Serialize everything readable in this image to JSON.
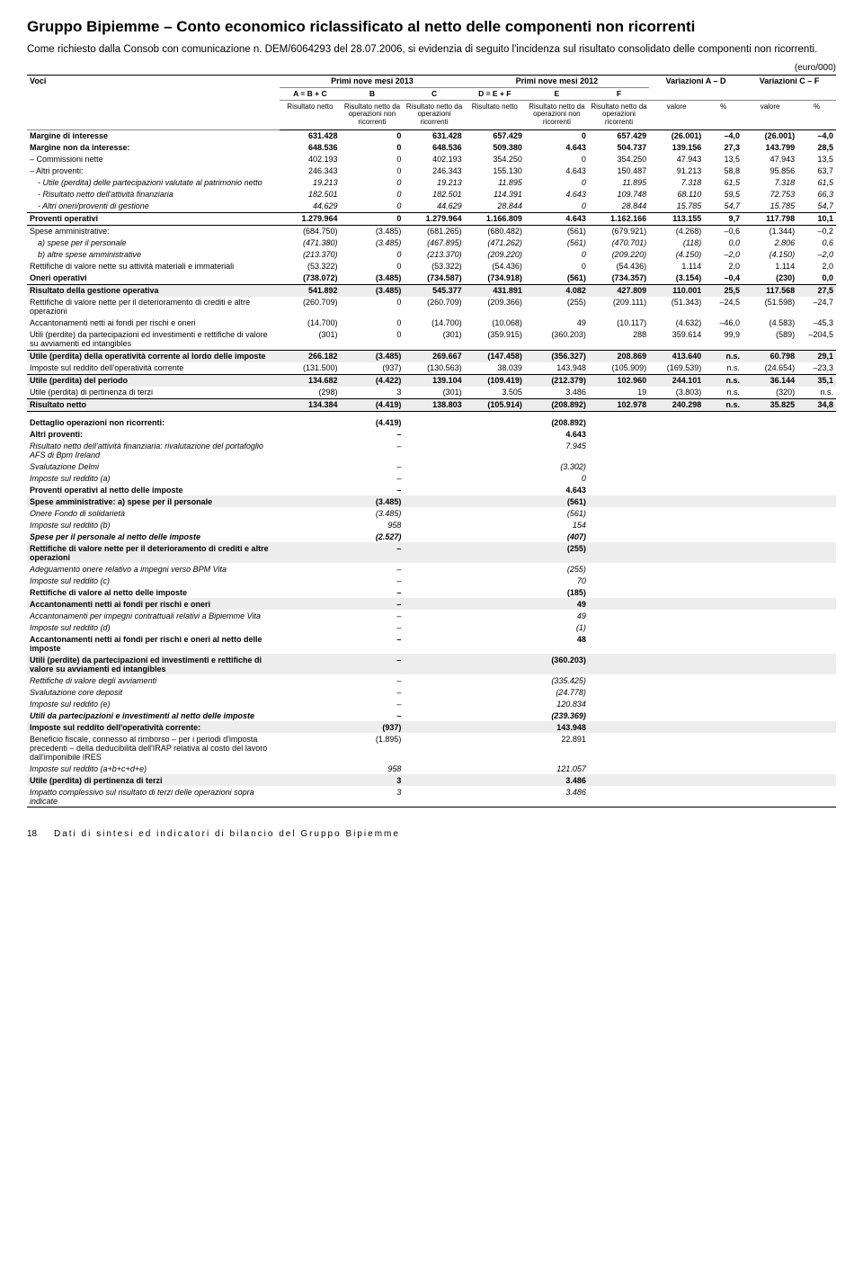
{
  "title": "Gruppo Bipiemme – Conto economico riclassificato al netto delle componenti non ricorrenti",
  "intro": "Come richiesto dalla Consob con comunicazione n. DEM/6064293 del 28.07.2006, si evidenzia di seguito l'incidenza sul risultato consolidato delle componenti non ricorrenti.",
  "unit": "(euro/000)",
  "headers": {
    "voci": "Voci",
    "p2013": "Primi nove mesi 2013",
    "p2012": "Primi nove mesi 2012",
    "varAD": "Variazioni A – D",
    "varCF": "Variazioni C – F",
    "a": "A = B + C",
    "b": "B",
    "c": "C",
    "d": "D = E + F",
    "e": "E",
    "f": "F",
    "rn": "Risultato netto",
    "rnnr": "Risultato netto da operazioni non ricorrenti",
    "rnr": "Risultato netto da operazioni ricorrenti",
    "valore": "valore",
    "pct": "%"
  },
  "rows": [
    {
      "l": "Margine di interesse",
      "b": 1,
      "v": [
        "631.428",
        "0",
        "631.428",
        "657.429",
        "0",
        "657.429",
        "(26.001)",
        "–4,0",
        "(26.001)",
        "–4,0"
      ]
    },
    {
      "l": "Margine non da interesse:",
      "b": 1,
      "v": [
        "648.536",
        "0",
        "648.536",
        "509.380",
        "4.643",
        "504.737",
        "139.156",
        "27,3",
        "143.799",
        "28,5"
      ]
    },
    {
      "l": "– Commissioni nette",
      "v": [
        "402.193",
        "0",
        "402.193",
        "354.250",
        "0",
        "354.250",
        "47.943",
        "13,5",
        "47.943",
        "13,5"
      ]
    },
    {
      "l": "– Altri proventi:",
      "v": [
        "246.343",
        "0",
        "246.343",
        "155.130",
        "4.643",
        "150.487",
        "91.213",
        "58,8",
        "95.856",
        "63,7"
      ]
    },
    {
      "l": "- Utile (perdita) delle partecipazioni valutate al patrimonio netto",
      "i": 1,
      "it": 1,
      "v": [
        "19.213",
        "0",
        "19.213",
        "11.895",
        "0",
        "11.895",
        "7.318",
        "61,5",
        "7.318",
        "61,5"
      ]
    },
    {
      "l": "- Risultato netto dell'attività finanziaria",
      "i": 1,
      "it": 1,
      "v": [
        "182.501",
        "0",
        "182.501",
        "114.391",
        "4.643",
        "109.748",
        "68.110",
        "59,5",
        "72.753",
        "66,3"
      ]
    },
    {
      "l": "- Altri oneri/proventi di gestione",
      "i": 1,
      "it": 1,
      "bl": 1,
      "v": [
        "44.629",
        "0",
        "44.629",
        "28.844",
        "0",
        "28.844",
        "15.785",
        "54,7",
        "15.785",
        "54,7"
      ]
    },
    {
      "l": "Proventi operativi",
      "b": 1,
      "bl": 1,
      "v": [
        "1.279.964",
        "0",
        "1.279.964",
        "1.166.809",
        "4.643",
        "1.162.166",
        "113.155",
        "9,7",
        "117.798",
        "10,1"
      ]
    },
    {
      "l": "Spese amministrative:",
      "v": [
        "(684.750)",
        "(3.485)",
        "(681.265)",
        "(680.482)",
        "(561)",
        "(679.921)",
        "(4.268)",
        "–0,6",
        "(1.344)",
        "–0,2"
      ]
    },
    {
      "l": "a) spese per il personale",
      "i": 1,
      "it": 1,
      "v": [
        "(471.380)",
        "(3.485)",
        "(467.895)",
        "(471.262)",
        "(561)",
        "(470.701)",
        "(118)",
        "0,0",
        "2.806",
        "0,6"
      ]
    },
    {
      "l": "b) altre spese amministrative",
      "i": 1,
      "it": 1,
      "v": [
        "(213.370)",
        "0",
        "(213.370)",
        "(209.220)",
        "0",
        "(209.220)",
        "(4.150)",
        "–2,0",
        "(4.150)",
        "–2,0"
      ]
    },
    {
      "l": "Rettifiche di valore nette su attività materiali e immateriali",
      "v": [
        "(53.322)",
        "0",
        "(53.322)",
        "(54.436)",
        "0",
        "(54.436)",
        "1.114",
        "2,0",
        "1.114",
        "2,0"
      ]
    },
    {
      "l": "Oneri operativi",
      "b": 1,
      "bl": 1,
      "v": [
        "(738.072)",
        "(3.485)",
        "(734.587)",
        "(734.918)",
        "(561)",
        "(734.357)",
        "(3.154)",
        "–0,4",
        "(230)",
        "0,0"
      ]
    },
    {
      "l": "Risultato della gestione operativa",
      "b": 1,
      "s": 1,
      "v": [
        "541.892",
        "(3.485)",
        "545.377",
        "431.891",
        "4.082",
        "427.809",
        "110.001",
        "25,5",
        "117.568",
        "27,5"
      ]
    },
    {
      "l": "Rettifiche di valore nette per il deterioramento di crediti e altre operazioni",
      "v": [
        "(260.709)",
        "0",
        "(260.709)",
        "(209.366)",
        "(255)",
        "(209.111)",
        "(51.343)",
        "–24,5",
        "(51.598)",
        "–24,7"
      ]
    },
    {
      "l": "Accantonamenti netti ai fondi per rischi e oneri",
      "v": [
        "(14.700)",
        "0",
        "(14.700)",
        "(10.068)",
        "49",
        "(10.117)",
        "(4.632)",
        "–46,0",
        "(4.583)",
        "–45,3"
      ]
    },
    {
      "l": "Utili (perdite) da partecipazioni ed investimenti e rettifiche di valore su avviamenti ed intangibles",
      "bl": 1,
      "v": [
        "(301)",
        "0",
        "(301)",
        "(359.915)",
        "(360.203)",
        "288",
        "359.614",
        "99,9",
        "(589)",
        "–204,5"
      ]
    },
    {
      "l": "Utile (perdita) della operatività corrente al lordo delle imposte",
      "b": 1,
      "s": 1,
      "v": [
        "266.182",
        "(3.485)",
        "269.667",
        "(147.458)",
        "(356.327)",
        "208.869",
        "413.640",
        "n.s.",
        "60.798",
        "29,1"
      ]
    },
    {
      "l": "Imposte sul reddito dell'operatività corrente",
      "bl": 1,
      "v": [
        "(131.500)",
        "(937)",
        "(130.563)",
        "38.039",
        "143.948",
        "(105.909)",
        "(169.539)",
        "n.s.",
        "(24.654)",
        "–23,3"
      ]
    },
    {
      "l": "Utile (perdita) del periodo",
      "b": 1,
      "s": 1,
      "v": [
        "134.682",
        "(4.422)",
        "139.104",
        "(109.419)",
        "(212.379)",
        "102.960",
        "244.101",
        "n.s.",
        "36.144",
        "35,1"
      ]
    },
    {
      "l": "Utile (perdita) di pertinenza di terzi",
      "bl": 1,
      "v": [
        "(298)",
        "3",
        "(301)",
        "3.505",
        "3.486",
        "19",
        "(3.803)",
        "n.s.",
        "(320)",
        "n.s."
      ]
    },
    {
      "l": "Risultato netto",
      "b": 1,
      "s": 1,
      "bl": 1,
      "v": [
        "134.384",
        "(4.419)",
        "138.803",
        "(105.914)",
        "(208.892)",
        "102.978",
        "240.298",
        "n.s.",
        "35.825",
        "34,8"
      ]
    }
  ],
  "detail": [
    {
      "l": "Dettaglio operazioni non ricorrenti:",
      "b": 1,
      "v": [
        "(4.419)",
        "(208.892)"
      ]
    },
    {
      "l": "Altri proventi:",
      "b": 1,
      "v": [
        "–",
        "4.643"
      ]
    },
    {
      "l": "Risultato netto dell'attività finanziaria: rivalutazione del portafoglio AFS di Bpm Ireland",
      "it": 1,
      "v": [
        "–",
        "7.945"
      ]
    },
    {
      "l": "Svalutazione Delmi",
      "it": 1,
      "v": [
        "–",
        "(3.302)"
      ]
    },
    {
      "l": "Imposte sul reddito (a)",
      "it": 1,
      "v": [
        "–",
        "0"
      ]
    },
    {
      "l": "Proventi operativi al netto delle imposte",
      "b": 1,
      "v": [
        "–",
        "4.643"
      ]
    },
    {
      "l": "Spese amministrative: a) spese per il personale",
      "b": 1,
      "s": 1,
      "v": [
        "(3.485)",
        "(561)"
      ]
    },
    {
      "l": "Onere Fondo di solidarietà",
      "it": 1,
      "v": [
        "(3.485)",
        "(561)"
      ]
    },
    {
      "l": "Imposte sul reddito (b)",
      "it": 1,
      "v": [
        "958",
        "154"
      ]
    },
    {
      "l": "Spese per il personale al netto delle imposte",
      "b": 1,
      "it": 1,
      "v": [
        "(2.527)",
        "(407)"
      ]
    },
    {
      "l": "Rettifiche di valore nette per il deterioramento di crediti e altre operazioni",
      "b": 1,
      "s": 1,
      "v": [
        "–",
        "(255)"
      ]
    },
    {
      "l": "Adeguamento onere relativo a impegni verso BPM Vita",
      "it": 1,
      "v": [
        "–",
        "(255)"
      ]
    },
    {
      "l": "Imposte sul reddito (c)",
      "it": 1,
      "v": [
        "–",
        "70"
      ]
    },
    {
      "l": "Rettifiche di valore al netto delle imposte",
      "b": 1,
      "v": [
        "–",
        "(185)"
      ]
    },
    {
      "l": "Accantonamenti netti ai fondi per rischi e oneri",
      "b": 1,
      "s": 1,
      "v": [
        "–",
        "49"
      ]
    },
    {
      "l": "Accantonamenti per impegni contrattuali relativi a Bipiemme Vita",
      "it": 1,
      "v": [
        "–",
        "49"
      ]
    },
    {
      "l": "Imposte sul reddito (d)",
      "it": 1,
      "v": [
        "–",
        "(1)"
      ]
    },
    {
      "l": "Accantonamenti netti ai fondi per rischi e oneri al netto delle imposte",
      "b": 1,
      "v": [
        "–",
        "48"
      ]
    },
    {
      "l": "Utili (perdite) da partecipazioni ed investimenti e rettifiche di valore su avviamenti ed intangibles",
      "b": 1,
      "s": 1,
      "v": [
        "–",
        "(360.203)"
      ]
    },
    {
      "l": "Rettifiche di valore degli avviamenti",
      "it": 1,
      "v": [
        "–",
        "(335.425)"
      ]
    },
    {
      "l": "Svalutazione core deposit",
      "it": 1,
      "v": [
        "–",
        "(24.778)"
      ]
    },
    {
      "l": "Imposte sul reddito (e)",
      "it": 1,
      "v": [
        "–",
        "120.834"
      ]
    },
    {
      "l": "Utili da partecipazioni e investimenti al netto delle imposte",
      "b": 1,
      "it": 1,
      "v": [
        "–",
        "(239.369)"
      ]
    },
    {
      "l": "Imposte sul reddito dell'operatività corrente:",
      "b": 1,
      "s": 1,
      "v": [
        "(937)",
        "143.948"
      ]
    },
    {
      "l": "Beneficio fiscale, connesso al rimborso – per i periodi d'imposta precedenti – della deducibilità dell'IRAP relativa al costo del lavoro dall'imponibile IRES",
      "v": [
        "(1.895)",
        "22.891"
      ]
    },
    {
      "l": "Imposte sul reddito  (a+b+c+d+e)",
      "it": 1,
      "v": [
        "958",
        "121.057"
      ]
    },
    {
      "l": "Utile (perdita) di pertinenza di terzi",
      "b": 1,
      "s": 1,
      "v": [
        "3",
        "3.486"
      ]
    },
    {
      "l": "Impatto complessivo sul risultato di terzi delle operazioni sopra indicate",
      "it": 1,
      "bl": 1,
      "v": [
        "3",
        "3.486"
      ]
    }
  ],
  "footer": {
    "page": "18",
    "text": "Dati di sintesi ed indicatori di bilancio del Gruppo Bipiemme"
  }
}
